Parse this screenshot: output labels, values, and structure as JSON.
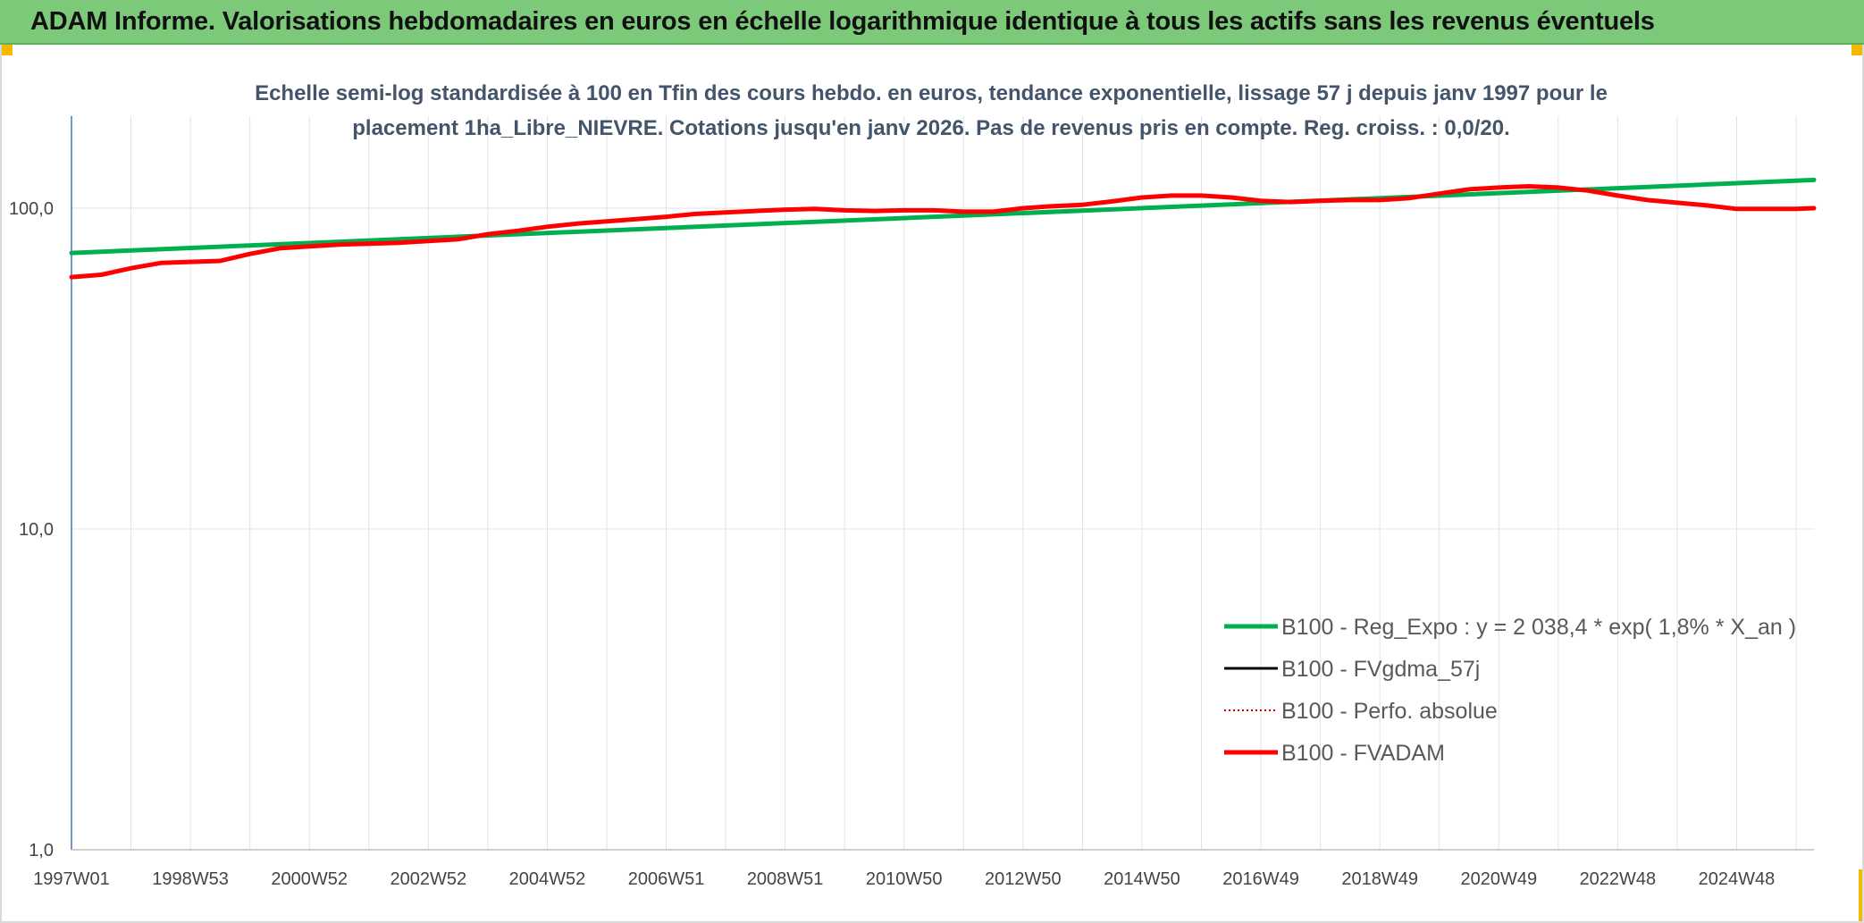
{
  "banner": {
    "title": "ADAM Informe. Valorisations hebdomadaires en euros en échelle logarithmique identique à tous les actifs sans les revenus éventuels"
  },
  "colors": {
    "banner_bg": "#7dc97a",
    "accent_corner": "#f5b800",
    "title_text": "#44546a",
    "reg_expo": "#00b050",
    "fvgdma": "#000000",
    "perfo": "#c00000",
    "fvadam": "#ff0000"
  },
  "chart_data": {
    "type": "line",
    "title_line1": "Echelle semi-log standardisée à 100 en Tfin des cours hebdo. en euros, tendance exponentielle, lissage 57 j depuis janv 1997 pour le",
    "title_line2": "placement 1ha_Libre_NIEVRE. Cotations jusqu'en janv 2026. Pas de revenus pris en compte. Reg. croiss. : 0,0/20.",
    "y_scale": "log",
    "ylim": [
      1,
      200
    ],
    "xlim": [
      1997.0,
      2026.0
    ],
    "grid": true,
    "legend_position": "lower-right",
    "y_ticks": [
      {
        "value": 1,
        "label": "1,0"
      },
      {
        "value": 10,
        "label": "10,0"
      },
      {
        "value": 100,
        "label": "100,0"
      }
    ],
    "x_ticks": [
      {
        "value": 1997.0,
        "label": "1997W01"
      },
      {
        "value": 1999.0,
        "label": "1998W53"
      },
      {
        "value": 2001.0,
        "label": "2000W52"
      },
      {
        "value": 2003.0,
        "label": "2002W52"
      },
      {
        "value": 2005.0,
        "label": "2004W52"
      },
      {
        "value": 2007.0,
        "label": "2006W51"
      },
      {
        "value": 2009.0,
        "label": "2008W51"
      },
      {
        "value": 2011.0,
        "label": "2010W50"
      },
      {
        "value": 2013.0,
        "label": "2012W50"
      },
      {
        "value": 2015.0,
        "label": "2014W50"
      },
      {
        "value": 2017.0,
        "label": "2016W49"
      },
      {
        "value": 2019.0,
        "label": "2018W49"
      },
      {
        "value": 2021.0,
        "label": "2020W49"
      },
      {
        "value": 2023.0,
        "label": "2022W48"
      },
      {
        "value": 2025.0,
        "label": "2024W48"
      }
    ],
    "series": [
      {
        "name": "B100 - Reg_Expo : y = 2 038,4 * exp( 1,8% *  X_an )",
        "color": "#00b050",
        "style": "solid-thick",
        "x": [
          1997.0,
          2026.3
        ],
        "y": [
          72.5,
          122.5
        ]
      },
      {
        "name": "B100 - FVgdma_57j",
        "color": "#000000",
        "style": "solid",
        "x": [],
        "y": []
      },
      {
        "name": "B100 - Perfo. absolue",
        "color": "#c00000",
        "style": "dotted",
        "x": [],
        "y": []
      },
      {
        "name": "B100 - FVADAM",
        "color": "#ff0000",
        "style": "solid-thick",
        "x": [
          1997.0,
          1997.5,
          1998.0,
          1998.5,
          1999.0,
          1999.5,
          2000.0,
          2000.5,
          2001.0,
          2001.5,
          2002.0,
          2002.5,
          2003.0,
          2003.5,
          2004.0,
          2004.5,
          2005.0,
          2005.5,
          2006.0,
          2006.5,
          2007.0,
          2007.5,
          2008.0,
          2008.5,
          2009.0,
          2009.5,
          2010.0,
          2010.5,
          2011.0,
          2011.5,
          2012.0,
          2012.5,
          2013.0,
          2013.5,
          2014.0,
          2014.5,
          2015.0,
          2015.5,
          2016.0,
          2016.5,
          2017.0,
          2017.5,
          2018.0,
          2018.5,
          2019.0,
          2019.5,
          2020.0,
          2020.5,
          2021.0,
          2021.5,
          2022.0,
          2022.5,
          2023.0,
          2023.5,
          2024.0,
          2024.5,
          2025.0,
          2025.5,
          2026.0,
          2026.3
        ],
        "y": [
          61.0,
          62.0,
          65.0,
          67.5,
          68.0,
          68.5,
          72.0,
          75.0,
          76.0,
          77.0,
          77.5,
          78.0,
          79.0,
          80.0,
          83.0,
          85.0,
          87.5,
          89.5,
          91.0,
          92.5,
          94.0,
          96.0,
          97.0,
          98.0,
          99.0,
          99.5,
          98.5,
          98.0,
          98.5,
          98.5,
          97.5,
          97.5,
          100.0,
          101.5,
          102.5,
          105.0,
          108.0,
          109.5,
          109.5,
          108.0,
          105.5,
          104.5,
          105.5,
          106.0,
          106.0,
          107.5,
          111.0,
          114.5,
          116.0,
          117.0,
          116.0,
          113.5,
          109.5,
          106.0,
          104.0,
          102.0,
          99.5,
          99.5,
          99.5,
          100.0
        ]
      }
    ]
  }
}
